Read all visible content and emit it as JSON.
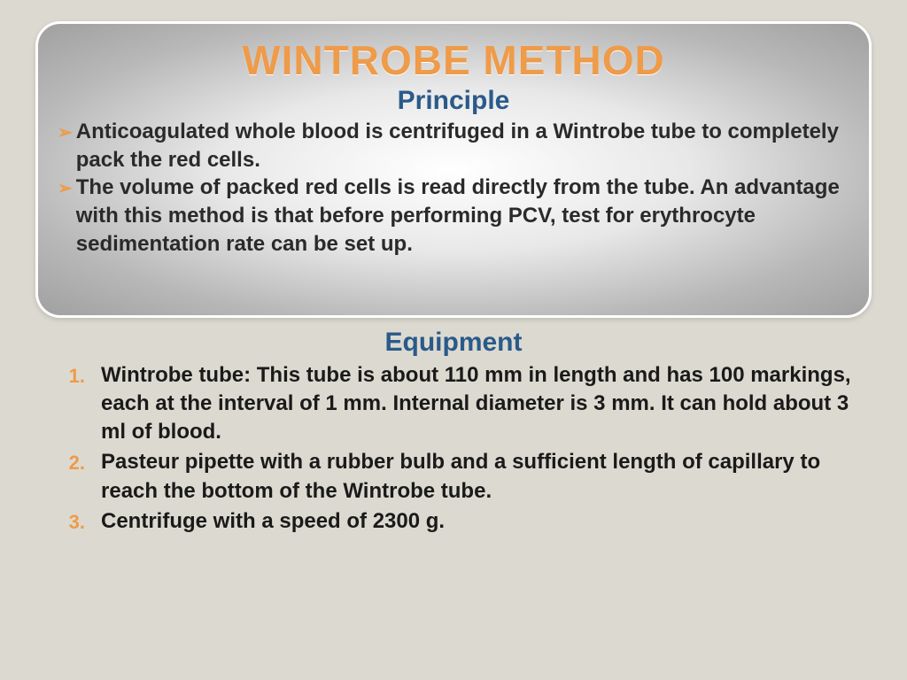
{
  "title": "WINTROBE METHOD",
  "principle": {
    "heading": "Principle",
    "items": [
      "Anticoagulated whole blood is centrifuged in a Wintrobe tube to completely pack the red cells.",
      "The volume of packed red cells is read directly from the tube. An advantage with this method is that before performing PCV, test for erythrocyte sedimentation rate can be set up."
    ]
  },
  "equipment": {
    "heading": "Equipment",
    "items": [
      "Wintrobe tube: This tube is about 110 mm in length and has 100 markings, each at the interval of 1 mm. Internal diameter is 3 mm. It can hold about 3 ml of blood.",
      "Pasteur pipette with a rubber bulb and a sufficient length of capillary to reach the bottom of the Wintrobe tube.",
      "Centrifuge with a speed of 2300 g."
    ]
  },
  "style": {
    "slide_bg": "#dcdad0",
    "title_color": "#ee9b4a",
    "heading_color": "#2a5a8a",
    "body_text_color": "#1a1a1a",
    "accent_color": "#ee9b4a",
    "title_fontsize": 46,
    "heading_fontsize": 30,
    "body_fontsize": 24,
    "card_radius": 28,
    "card_gradient_inner": "#ffffff",
    "card_gradient_outer": "#a0a0a0"
  }
}
